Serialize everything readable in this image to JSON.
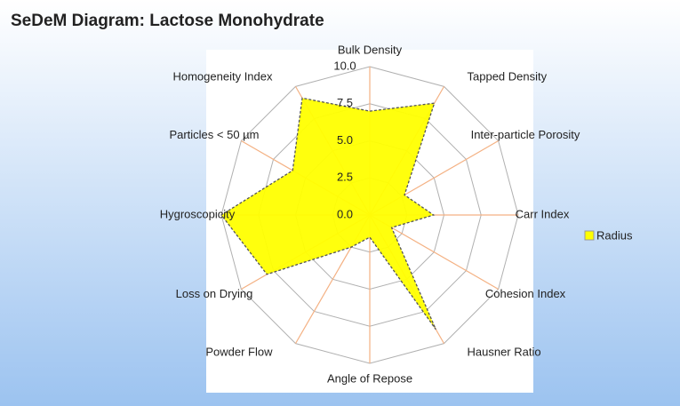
{
  "chart_data": {
    "type": "radar",
    "title": "SeDeM  Diagram: Lactose Monohydrate",
    "categories": [
      "Bulk Density",
      "Tapped Density",
      "Inter-particle Porosity",
      "Carr Index",
      "Cohesion Index",
      "Hausner Ratio",
      "Angle of Repose",
      "Powder Flow",
      "Loss on Drying",
      "Hygroscopicity",
      "Particles < 50 µm",
      "Homogeneity Index"
    ],
    "series": [
      {
        "name": "Radius",
        "color": "#ffff00",
        "values": [
          7.0,
          8.7,
          2.7,
          4.3,
          1.7,
          8.9,
          1.5,
          2.5,
          8.0,
          10.0,
          6.0,
          9.1
        ]
      }
    ],
    "rlim": [
      0,
      10
    ],
    "rticks": [
      {
        "value": 0,
        "label": "0.0"
      },
      2.5,
      {
        "value": 5,
        "label": "5.0"
      },
      7.5,
      {
        "value": 10,
        "label": "10.0"
      }
    ],
    "grid": true,
    "legend": "right"
  }
}
